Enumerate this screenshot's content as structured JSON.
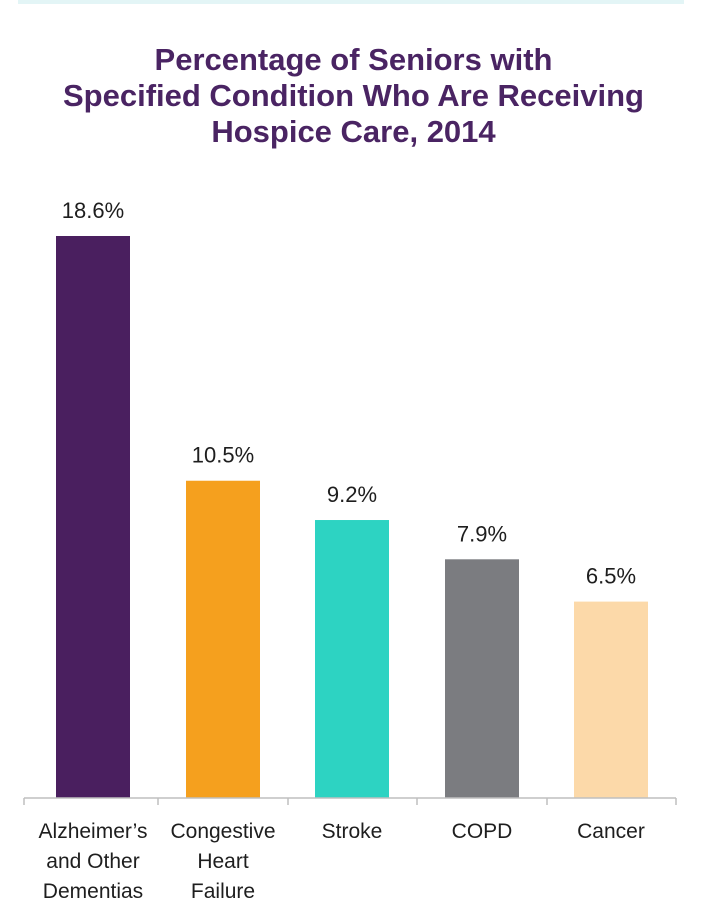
{
  "chart_data": {
    "type": "bar",
    "title_lines": [
      "Percentage of Seniors with",
      "Specified Condition Who Are Receiving",
      "Hospice Care, 2014"
    ],
    "categories": [
      [
        "Alzheimer’s",
        "and Other",
        "Dementias"
      ],
      [
        "Congestive",
        "Heart",
        "Failure"
      ],
      [
        "Stroke"
      ],
      [
        "COPD"
      ],
      [
        "Cancer"
      ]
    ],
    "values": [
      18.6,
      10.5,
      9.2,
      7.9,
      6.5
    ],
    "value_labels": [
      "18.6%",
      "10.5%",
      "9.2%",
      "7.9%",
      "6.5%"
    ],
    "colors": [
      "#4a1f5f",
      "#f5a01e",
      "#2dd3c2",
      "#7b7c80",
      "#fcd9a9"
    ],
    "ylim": [
      0,
      18.6
    ],
    "grid": false
  },
  "colors": {
    "title": "#4a2463",
    "axis": "#bfbfbf",
    "text": "#1e1e1e",
    "top_border": "#e3f5f6"
  }
}
